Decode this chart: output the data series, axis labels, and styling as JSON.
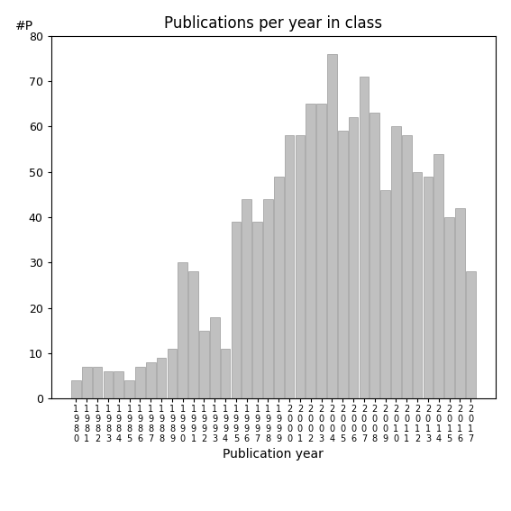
{
  "title": "Publications per year in class",
  "xlabel": "Publication year",
  "ylabel": "#P",
  "years": [
    1980,
    1981,
    1982,
    1983,
    1984,
    1985,
    1986,
    1987,
    1988,
    1989,
    1990,
    1991,
    1992,
    1993,
    1994,
    1995,
    1996,
    1997,
    1998,
    1999,
    2000,
    2001,
    2002,
    2003,
    2004,
    2005,
    2006,
    2007,
    2008,
    2009,
    2010,
    2011,
    2012,
    2013,
    2014,
    2015,
    2016,
    2017
  ],
  "values": [
    4,
    7,
    7,
    6,
    6,
    4,
    7,
    8,
    9,
    11,
    30,
    28,
    15,
    18,
    11,
    39,
    44,
    39,
    44,
    49,
    58,
    58,
    65,
    65,
    76,
    59,
    62,
    71,
    63,
    46,
    60,
    58,
    50,
    49,
    54,
    40,
    42,
    28
  ],
  "bar_color": "#c0c0c0",
  "bar_edge_color": "#999999",
  "ylim": [
    0,
    80
  ],
  "yticks": [
    0,
    10,
    20,
    30,
    40,
    50,
    60,
    70,
    80
  ],
  "background_color": "#ffffff",
  "title_fontsize": 12,
  "axis_label_fontsize": 10,
  "tick_fontsize": 9,
  "xtick_fontsize": 7
}
